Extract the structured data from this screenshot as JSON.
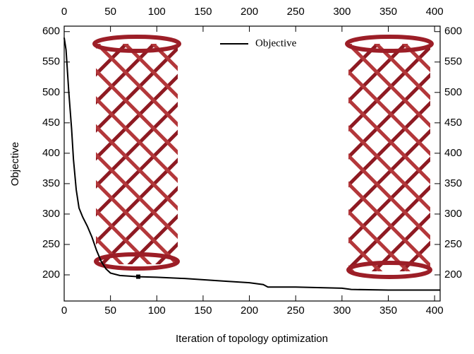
{
  "chart_data": {
    "type": "line",
    "x_label": "Iteration of topology optimization",
    "y_label": "Objective",
    "x": [
      0,
      2,
      5,
      8,
      10,
      13,
      16,
      20,
      25,
      30,
      35,
      40,
      45,
      50,
      60,
      70,
      80,
      100,
      130,
      150,
      170,
      200,
      215,
      220,
      250,
      300,
      310,
      350,
      406
    ],
    "series": [
      {
        "name": "Objective",
        "color": "#000000",
        "values": [
          590,
          570,
          500,
          440,
          390,
          340,
          310,
          295,
          280,
          262,
          240,
          222,
          210,
          203,
          199,
          198,
          197,
          196,
          194,
          192,
          190,
          187,
          184,
          180,
          180,
          178,
          176,
          175,
          175
        ]
      }
    ],
    "highlight": {
      "x": 80,
      "y": 197
    },
    "xlim": [
      0,
      406
    ],
    "ylim": [
      157,
      609
    ],
    "xticks": [
      0,
      50,
      100,
      150,
      200,
      250,
      300,
      350,
      400
    ],
    "yticks": [
      200,
      250,
      300,
      350,
      400,
      450,
      500,
      550,
      600
    ],
    "legend": "top"
  }
}
